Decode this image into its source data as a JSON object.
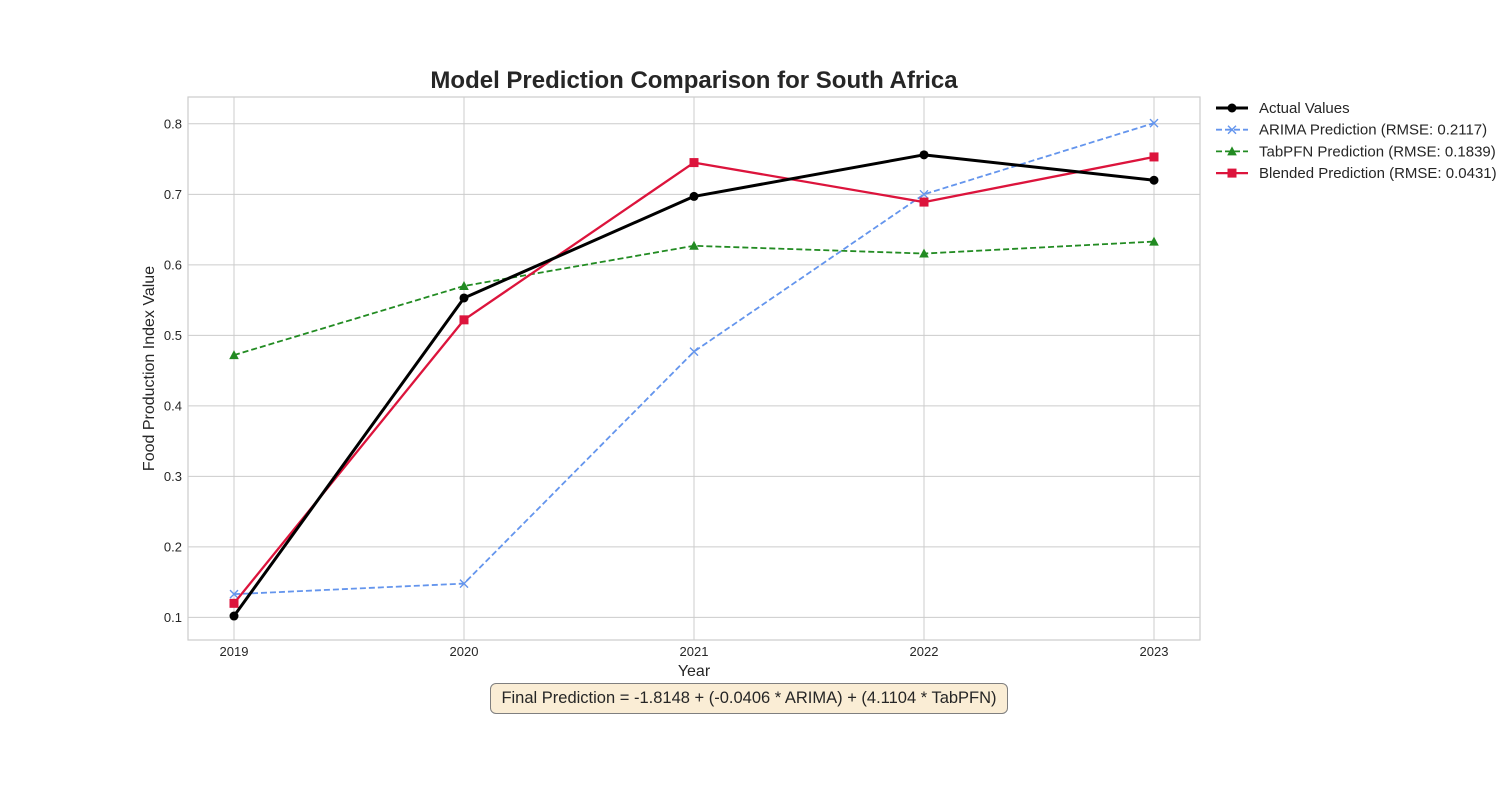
{
  "chart_data": {
    "type": "line",
    "title": "Model Prediction Comparison for South Africa",
    "xlabel": "Year",
    "ylabel": "Food Production Index Value",
    "categories": [
      "2019",
      "2020",
      "2021",
      "2022",
      "2023"
    ],
    "xlim": [
      2018.8,
      2023.2
    ],
    "ylim": [
      0.068,
      0.838
    ],
    "yticks": [
      0.1,
      0.2,
      0.3,
      0.4,
      0.5,
      0.6,
      0.7,
      0.8
    ],
    "grid": true,
    "legend_position": "outside-top-right",
    "series": [
      {
        "name": "Actual Values",
        "values": [
          0.102,
          0.553,
          0.697,
          0.756,
          0.72
        ],
        "color": "#000000",
        "marker": "circle",
        "linestyle": "solid"
      },
      {
        "name": "ARIMA Prediction (RMSE: 0.2117)",
        "values": [
          0.133,
          0.148,
          0.477,
          0.7,
          0.801
        ],
        "color": "#6495ed",
        "marker": "x",
        "linestyle": "dashed"
      },
      {
        "name": "TabPFN Prediction (RMSE: 0.1839)",
        "values": [
          0.472,
          0.57,
          0.627,
          0.616,
          0.633
        ],
        "color": "#228b22",
        "marker": "triangle",
        "linestyle": "dashed"
      },
      {
        "name": "Blended Prediction (RMSE: 0.0431)",
        "values": [
          0.12,
          0.522,
          0.745,
          0.689,
          0.753
        ],
        "color": "#dc143c",
        "marker": "square",
        "linestyle": "solid"
      }
    ]
  },
  "annotation": {
    "formula": "Final Prediction = -1.8148 + (-0.0406 * ARIMA) + (4.1104 * TabPFN)"
  }
}
